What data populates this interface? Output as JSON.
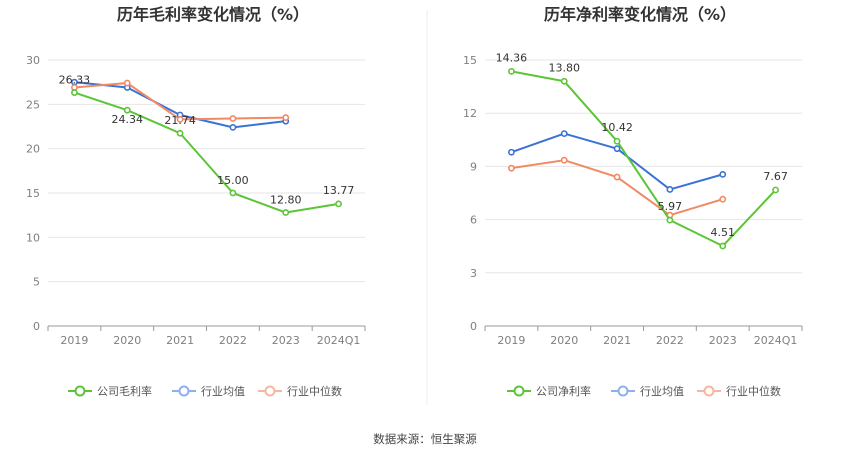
{
  "source_text": "数据来源：恒生聚源",
  "chart_data": [
    {
      "type": "line",
      "title": "历年毛利率变化情况（%）",
      "categories": [
        "2019",
        "2020",
        "2021",
        "2022",
        "2023",
        "2024Q1"
      ],
      "ylim": [
        0,
        30
      ],
      "yticks": [
        0,
        5,
        10,
        15,
        20,
        25,
        30
      ],
      "grid": true,
      "legend_position": "bottom",
      "series": [
        {
          "name": "公司毛利率",
          "color": "#5cc437",
          "values": [
            26.33,
            24.34,
            21.74,
            15.0,
            12.8,
            13.77
          ],
          "labels": [
            "26.33",
            "24.34",
            "21.74",
            "15.00",
            "12.80",
            "13.77"
          ]
        },
        {
          "name": "行业均值",
          "color": "#3b72d6",
          "values": [
            27.5,
            26.9,
            23.8,
            22.4,
            23.1,
            null
          ]
        },
        {
          "name": "行业中位数",
          "color": "#f08a63",
          "values": [
            26.9,
            27.4,
            23.3,
            23.4,
            23.5,
            null
          ]
        }
      ]
    },
    {
      "type": "line",
      "title": "历年净利率变化情况（%）",
      "categories": [
        "2019",
        "2020",
        "2021",
        "2022",
        "2023",
        "2024Q1"
      ],
      "ylim": [
        0,
        15
      ],
      "yticks": [
        0,
        3,
        6,
        9,
        12,
        15
      ],
      "grid": true,
      "legend_position": "bottom",
      "series": [
        {
          "name": "公司净利率",
          "color": "#5cc437",
          "values": [
            14.36,
            13.8,
            10.42,
            5.97,
            4.51,
            7.67
          ],
          "labels": [
            "14.36",
            "13.80",
            "10.42",
            "5.97",
            "4.51",
            "7.67"
          ]
        },
        {
          "name": "行业均值",
          "color": "#3b72d6",
          "values": [
            9.8,
            10.85,
            10.0,
            7.7,
            8.55,
            null
          ]
        },
        {
          "name": "行业中位数",
          "color": "#f08a63",
          "values": [
            8.9,
            9.35,
            8.4,
            6.25,
            7.15,
            null
          ]
        }
      ]
    }
  ]
}
